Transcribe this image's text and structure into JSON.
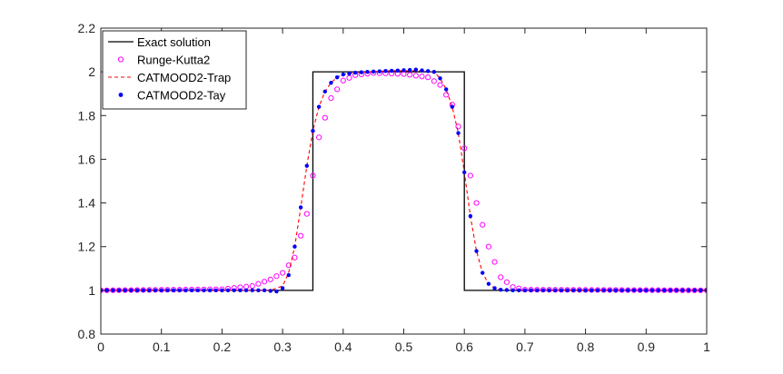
{
  "chart_data": {
    "type": "line",
    "title": "",
    "xlabel": "",
    "ylabel": "",
    "xlim": [
      0,
      1
    ],
    "ylim": [
      0.8,
      2.2
    ],
    "xticks": [
      "0",
      "0.1",
      "0.2",
      "0.3",
      "0.4",
      "0.5",
      "0.6",
      "0.7",
      "0.8",
      "0.9",
      "1"
    ],
    "yticks": [
      "0.8",
      "1",
      "1.2",
      "1.4",
      "1.6",
      "1.8",
      "2",
      "2.2"
    ],
    "grid": false,
    "legend_position": "top-left",
    "series": [
      {
        "name": "Exact solution",
        "style": "solid-line",
        "color": "#000000",
        "x": [
          0,
          0.35,
          0.35,
          0.6,
          0.6,
          1
        ],
        "y": [
          1,
          1,
          2,
          2,
          1,
          1
        ]
      },
      {
        "name": "Runge-Kutta2",
        "style": "open-circle-markers",
        "color": "#ff00ff",
        "x": [
          0,
          0.2,
          0.25,
          0.28,
          0.3,
          0.32,
          0.34,
          0.36,
          0.38,
          0.4,
          0.42,
          0.45,
          0.5,
          0.54,
          0.56,
          0.58,
          0.6,
          0.62,
          0.64,
          0.66,
          0.68,
          0.7,
          1
        ],
        "y": [
          1,
          1.005,
          1.02,
          1.05,
          1.08,
          1.15,
          1.35,
          1.7,
          1.88,
          1.96,
          1.985,
          1.995,
          1.99,
          1.975,
          1.94,
          1.85,
          1.65,
          1.4,
          1.2,
          1.06,
          1.015,
          1.003,
          1
        ]
      },
      {
        "name": "CATMOOD2-Trap",
        "style": "dashed-line",
        "color": "#ff0000",
        "x": [
          0,
          0.2,
          0.25,
          0.28,
          0.3,
          0.31,
          0.32,
          0.33,
          0.34,
          0.35,
          0.36,
          0.37,
          0.38,
          0.39,
          0.4,
          0.42,
          0.44,
          0.48,
          0.52,
          0.55,
          0.56,
          0.57,
          0.58,
          0.59,
          0.6,
          0.61,
          0.62,
          0.63,
          0.64,
          0.65,
          0.66,
          0.68,
          1
        ],
        "y": [
          1,
          1,
          1,
          1,
          1.02,
          1.08,
          1.2,
          1.38,
          1.57,
          1.73,
          1.84,
          1.91,
          1.95,
          1.975,
          1.988,
          1.996,
          2,
          2.005,
          2.005,
          2,
          1.97,
          1.92,
          1.84,
          1.72,
          1.54,
          1.34,
          1.18,
          1.08,
          1.03,
          1.01,
          1.003,
          1,
          1
        ]
      },
      {
        "name": "CATMOOD2-Tay",
        "style": "filled-dot-markers",
        "color": "#0000ff",
        "x": [
          0,
          0.27,
          0.29,
          0.3,
          0.31,
          0.32,
          0.33,
          0.34,
          0.35,
          0.36,
          0.37,
          0.38,
          0.39,
          0.4,
          0.42,
          0.44,
          0.48,
          0.52,
          0.55,
          0.56,
          0.57,
          0.58,
          0.59,
          0.6,
          0.61,
          0.62,
          0.63,
          0.64,
          0.65,
          0.66,
          0.68,
          1
        ],
        "y": [
          1,
          1,
          0.995,
          1.01,
          1.07,
          1.2,
          1.38,
          1.57,
          1.73,
          1.84,
          1.91,
          1.95,
          1.975,
          1.988,
          1.996,
          2,
          2.005,
          2.01,
          2.0,
          1.97,
          1.92,
          1.84,
          1.72,
          1.54,
          1.34,
          1.18,
          1.08,
          1.03,
          1.01,
          1.003,
          1,
          1
        ]
      }
    ]
  }
}
